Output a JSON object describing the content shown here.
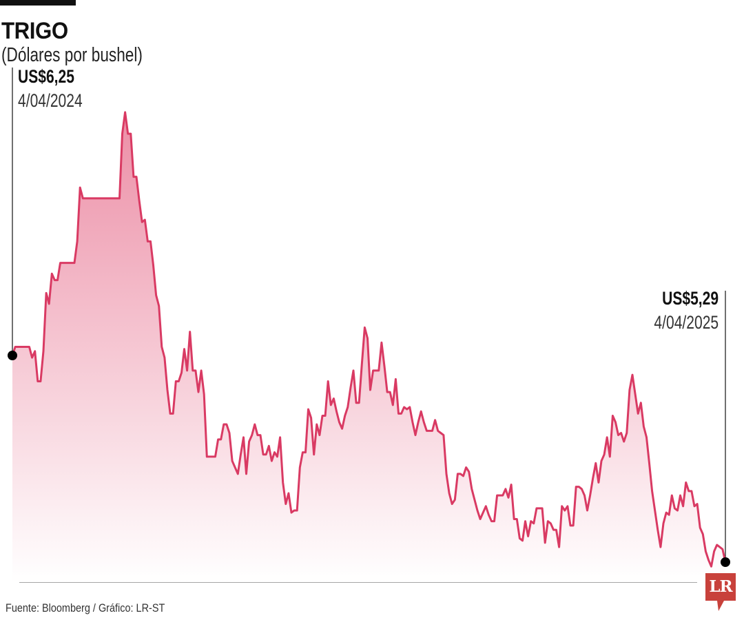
{
  "header": {
    "title": "TRIGO",
    "subtitle": "(Dólares por bushel)"
  },
  "annotations": {
    "start": {
      "value": "US$6,25",
      "date": "4/04/2024"
    },
    "end": {
      "value": "US$5,29",
      "date": "4/04/2025"
    }
  },
  "footer": {
    "source": "Fuente: Bloomberg / Gráfico: LR-ST"
  },
  "logo": {
    "text": "LR"
  },
  "colors": {
    "line": "#d93a63",
    "fill_top": "#ec8ea6",
    "fill_bottom": "#ffffff",
    "baseline": "#888888",
    "logo": "#c8413b"
  },
  "chart_data": {
    "type": "area",
    "title": "TRIGO",
    "ylabel": "(Dólares por bushel)",
    "x_start": "4/04/2024",
    "x_end": "4/04/2025",
    "grid": false,
    "values": [
      6.25,
      6.29,
      6.29,
      6.29,
      6.29,
      6.29,
      6.29,
      6.24,
      6.27,
      6.13,
      6.13,
      6.27,
      6.54,
      6.49,
      6.63,
      6.6,
      6.6,
      6.68,
      6.68,
      6.68,
      6.68,
      6.68,
      6.68,
      6.78,
      7.03,
      6.98,
      6.98,
      6.98,
      6.98,
      6.98,
      6.98,
      6.98,
      6.98,
      6.98,
      6.98,
      6.98,
      6.98,
      6.98,
      6.98,
      7.28,
      7.38,
      7.28,
      7.28,
      7.08,
      7.08,
      6.97,
      6.87,
      6.88,
      6.78,
      6.78,
      6.67,
      6.53,
      6.48,
      6.29,
      6.24,
      6.09,
      5.98,
      5.98,
      6.13,
      6.13,
      6.17,
      6.28,
      6.18,
      6.36,
      6.18,
      6.18,
      6.08,
      6.18,
      6.07,
      5.78,
      5.78,
      5.78,
      5.78,
      5.86,
      5.86,
      5.93,
      5.93,
      5.89,
      5.76,
      5.73,
      5.7,
      5.79,
      5.87,
      5.7,
      5.85,
      5.88,
      5.93,
      5.88,
      5.88,
      5.79,
      5.79,
      5.83,
      5.76,
      5.8,
      5.78,
      5.87,
      5.66,
      5.56,
      5.61,
      5.52,
      5.53,
      5.53,
      5.73,
      5.8,
      5.8,
      6.0,
      5.96,
      5.79,
      5.93,
      5.88,
      5.97,
      5.97,
      6.13,
      6.02,
      6.05,
      5.99,
      5.94,
      5.91,
      5.97,
      6.01,
      6.1,
      6.18,
      6.03,
      6.03,
      6.21,
      6.38,
      6.33,
      6.09,
      6.18,
      6.18,
      6.18,
      6.31,
      6.2,
      6.08,
      6.08,
      6.02,
      6.14,
      5.98,
      5.98,
      6.01,
      6.0,
      6.01,
      5.94,
      5.88,
      5.94,
      5.99,
      5.94,
      5.9,
      5.9,
      5.9,
      5.95,
      5.9,
      5.89,
      5.88,
      5.7,
      5.61,
      5.56,
      5.58,
      5.7,
      5.7,
      5.69,
      5.73,
      5.71,
      5.63,
      5.58,
      5.53,
      5.49,
      5.52,
      5.55,
      5.51,
      5.48,
      5.48,
      5.6,
      5.6,
      5.6,
      5.63,
      5.59,
      5.65,
      5.49,
      5.49,
      5.4,
      5.39,
      5.48,
      5.41,
      5.48,
      5.47,
      5.54,
      5.54,
      5.54,
      5.38,
      5.48,
      5.47,
      5.44,
      5.44,
      5.36,
      5.55,
      5.53,
      5.55,
      5.46,
      5.46,
      5.64,
      5.64,
      5.63,
      5.6,
      5.53,
      5.6,
      5.68,
      5.75,
      5.66,
      5.76,
      5.79,
      5.87,
      5.78,
      5.97,
      5.94,
      5.88,
      5.89,
      5.85,
      5.89,
      6.09,
      6.16,
      6.07,
      5.98,
      6.03,
      5.92,
      5.87,
      5.75,
      5.62,
      5.53,
      5.44,
      5.36,
      5.47,
      5.52,
      5.51,
      5.6,
      5.54,
      5.53,
      5.6,
      5.55,
      5.66,
      5.62,
      5.62,
      5.55,
      5.56,
      5.45,
      5.42,
      5.34,
      5.3,
      5.27,
      5.34,
      5.37,
      5.36,
      5.35,
      5.29
    ]
  }
}
